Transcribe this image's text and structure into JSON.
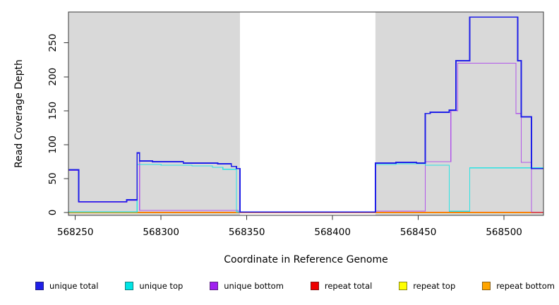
{
  "chart_data": {
    "type": "line",
    "subtype": "step-coverage-plot",
    "title": "",
    "xlabel": "Coordinate in Reference Genome",
    "ylabel": "Read Coverage Depth",
    "xlim": [
      568246,
      568523
    ],
    "ylim": [
      0,
      295
    ],
    "x_ticks": [
      568250,
      568300,
      568350,
      568400,
      568450,
      568500
    ],
    "y_ticks": [
      0,
      50,
      100,
      150,
      200,
      250
    ],
    "grid": false,
    "legend_position": "bottom",
    "background_shading": {
      "panel_color": "#d9d9d9",
      "gap_color": "#ffffff",
      "shaded_regions": [
        [
          568246,
          568346
        ],
        [
          568425,
          568523
        ]
      ],
      "note": "gray shaded aligned regions separated by a white coverage gap 568346-568425"
    },
    "frame_color": "#3a3a3a",
    "series": [
      {
        "name": "unique total",
        "color": "#1f1fe8",
        "steps": [
          [
            568246,
            62
          ],
          [
            568252,
            15
          ],
          [
            568280,
            18
          ],
          [
            568286,
            87
          ],
          [
            568287.5,
            75
          ],
          [
            568295,
            74
          ],
          [
            568313,
            72
          ],
          [
            568333,
            71
          ],
          [
            568341,
            67
          ],
          [
            568344,
            64
          ],
          [
            568346,
            0
          ],
          [
            568425,
            72
          ],
          [
            568437,
            73
          ],
          [
            568449,
            72
          ],
          [
            568454,
            145
          ],
          [
            568457,
            147
          ],
          [
            568468,
            150
          ],
          [
            568472,
            223
          ],
          [
            568480,
            287
          ],
          [
            568508,
            223
          ],
          [
            568510,
            140
          ],
          [
            568516,
            64
          ],
          [
            568523,
            64
          ]
        ]
      },
      {
        "name": "unique top",
        "color": "#00e5e5",
        "steps": [
          [
            568246,
            0
          ],
          [
            568286,
            70
          ],
          [
            568300,
            69
          ],
          [
            568318,
            68
          ],
          [
            568330,
            66
          ],
          [
            568336,
            63
          ],
          [
            568344,
            0
          ],
          [
            568425,
            70
          ],
          [
            568437,
            71
          ],
          [
            568454,
            69
          ],
          [
            568468,
            1
          ],
          [
            568480,
            65
          ],
          [
            568523,
            65
          ]
        ]
      },
      {
        "name": "unique bottom",
        "color": "#a020f0",
        "steps": [
          [
            568246,
            62
          ],
          [
            568252,
            15
          ],
          [
            568280,
            18
          ],
          [
            568286,
            87
          ],
          [
            568287.5,
            3
          ],
          [
            568345,
            0
          ],
          [
            568425,
            2
          ],
          [
            568454,
            75
          ],
          [
            568469,
            150
          ],
          [
            568473,
            220
          ],
          [
            568507,
            146
          ],
          [
            568510,
            74
          ],
          [
            568516,
            0
          ],
          [
            568523,
            0
          ]
        ]
      },
      {
        "name": "repeat total",
        "color": "#ee0000",
        "steps": [
          [
            568246,
            0
          ],
          [
            568523,
            0
          ]
        ]
      },
      {
        "name": "repeat top",
        "color": "#ffff00",
        "steps": [
          [
            568246,
            0
          ],
          [
            568523,
            0
          ]
        ]
      },
      {
        "name": "repeat bottom",
        "color": "#ffa500",
        "steps": [
          [
            568246,
            0
          ],
          [
            568523,
            0
          ]
        ]
      }
    ]
  }
}
